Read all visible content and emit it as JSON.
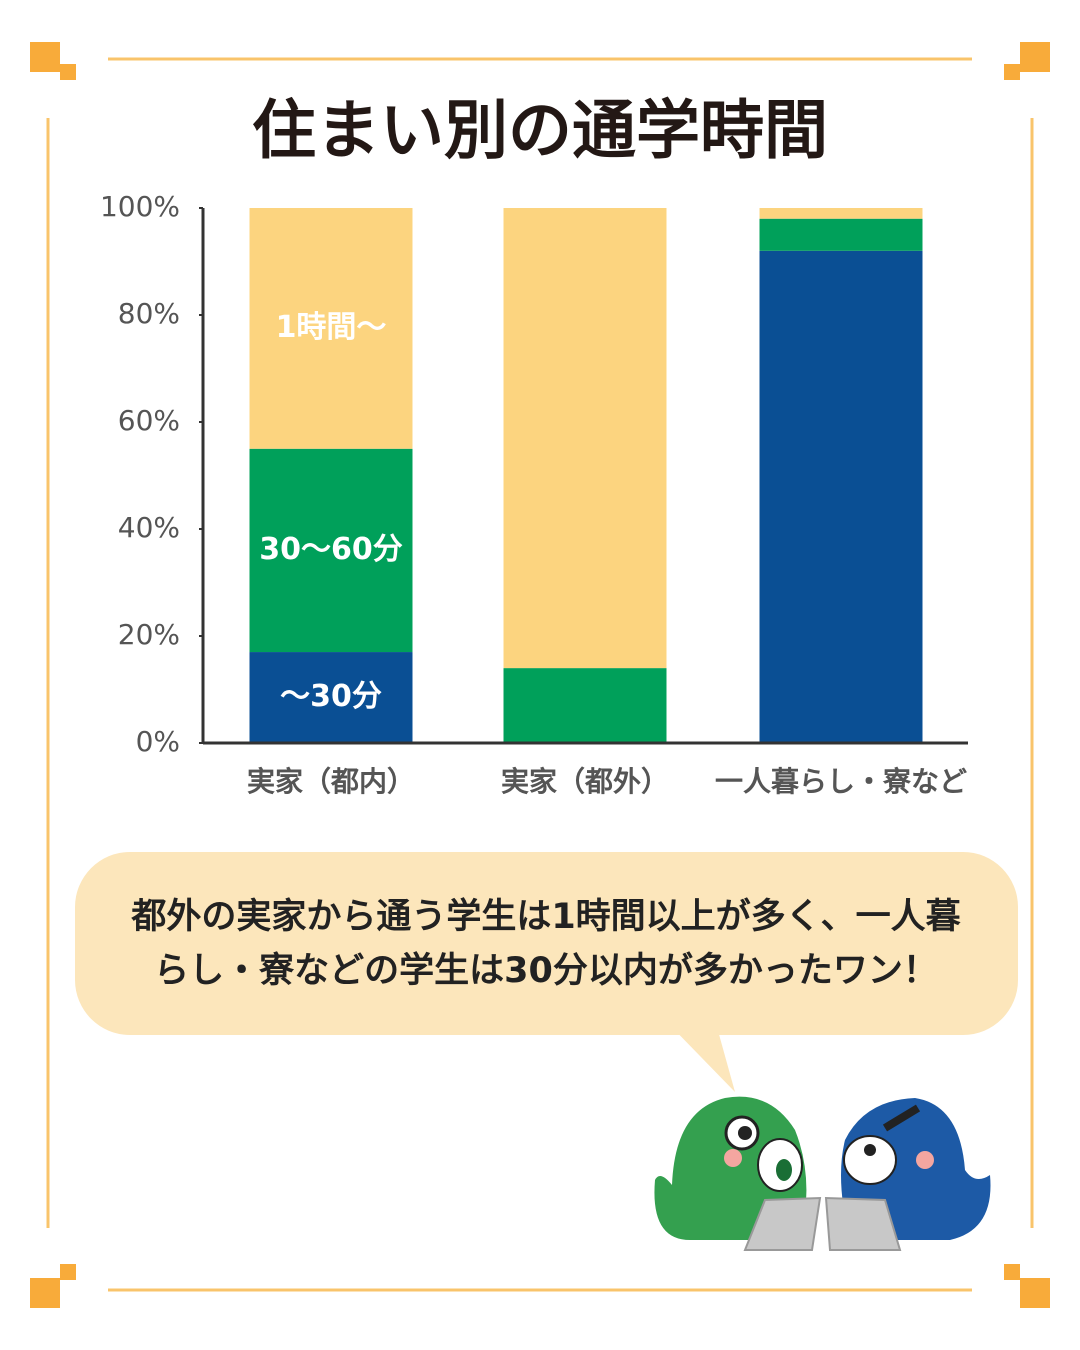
{
  "chart_data": {
    "type": "stacked_bar",
    "title": "住まい別の通学時間",
    "categories": [
      "実家（都内）",
      "実家（都外）",
      "一人暮らし・寮など"
    ],
    "series": [
      {
        "name": "〜30分",
        "color": "#0a4f94",
        "values": [
          17,
          0,
          92
        ]
      },
      {
        "name": "30〜60分",
        "color": "#00a05a",
        "values": [
          38,
          14,
          6
        ]
      },
      {
        "name": "1時間〜",
        "color": "#fcd47f",
        "values": [
          45,
          86,
          2
        ]
      }
    ],
    "ylim": [
      0,
      100
    ],
    "yticks": [
      {
        "value": 0,
        "label": "0%"
      },
      {
        "value": 20,
        "label": "20%"
      },
      {
        "value": 40,
        "label": "40%"
      },
      {
        "value": 60,
        "label": "60%"
      },
      {
        "value": 80,
        "label": "80%"
      },
      {
        "value": 100,
        "label": "100%"
      }
    ],
    "annotation_lines": [
      "都外の実家から通う学生は1時間以上が多く、一人暮",
      "らし・寮などの学生は30分以内が多かったワン！"
    ]
  }
}
